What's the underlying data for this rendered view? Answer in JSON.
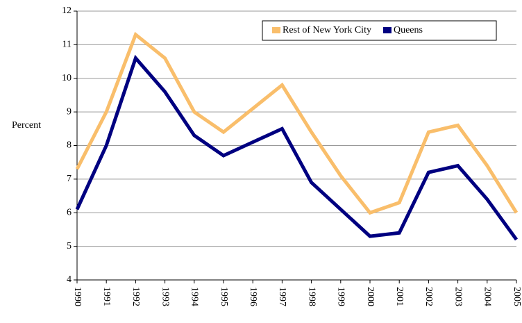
{
  "chart_data": {
    "type": "line",
    "y_label": "Percent",
    "categories": [
      "1990",
      "1991",
      "1992",
      "1993",
      "1994",
      "1995",
      "1996",
      "1997",
      "1998",
      "1999",
      "2000",
      "2001",
      "2002",
      "2003",
      "2004",
      "2005"
    ],
    "series": [
      {
        "name": "Rest of New York City",
        "color": "#f9be6b",
        "values": [
          7.3,
          9.0,
          11.3,
          10.6,
          9.0,
          8.4,
          9.1,
          9.8,
          8.4,
          7.1,
          6.0,
          6.3,
          8.4,
          8.6,
          7.4,
          6.0
        ]
      },
      {
        "name": "Queens",
        "color": "#000080",
        "values": [
          6.1,
          8.0,
          10.6,
          9.6,
          8.3,
          7.7,
          8.1,
          8.5,
          6.9,
          6.1,
          5.3,
          5.4,
          7.2,
          7.4,
          6.4,
          5.2
        ]
      }
    ],
    "ylim": [
      4,
      12
    ],
    "yticks": [
      4,
      5,
      6,
      7,
      8,
      9,
      10,
      11,
      12
    ],
    "grid": true,
    "legend": "top-right"
  }
}
